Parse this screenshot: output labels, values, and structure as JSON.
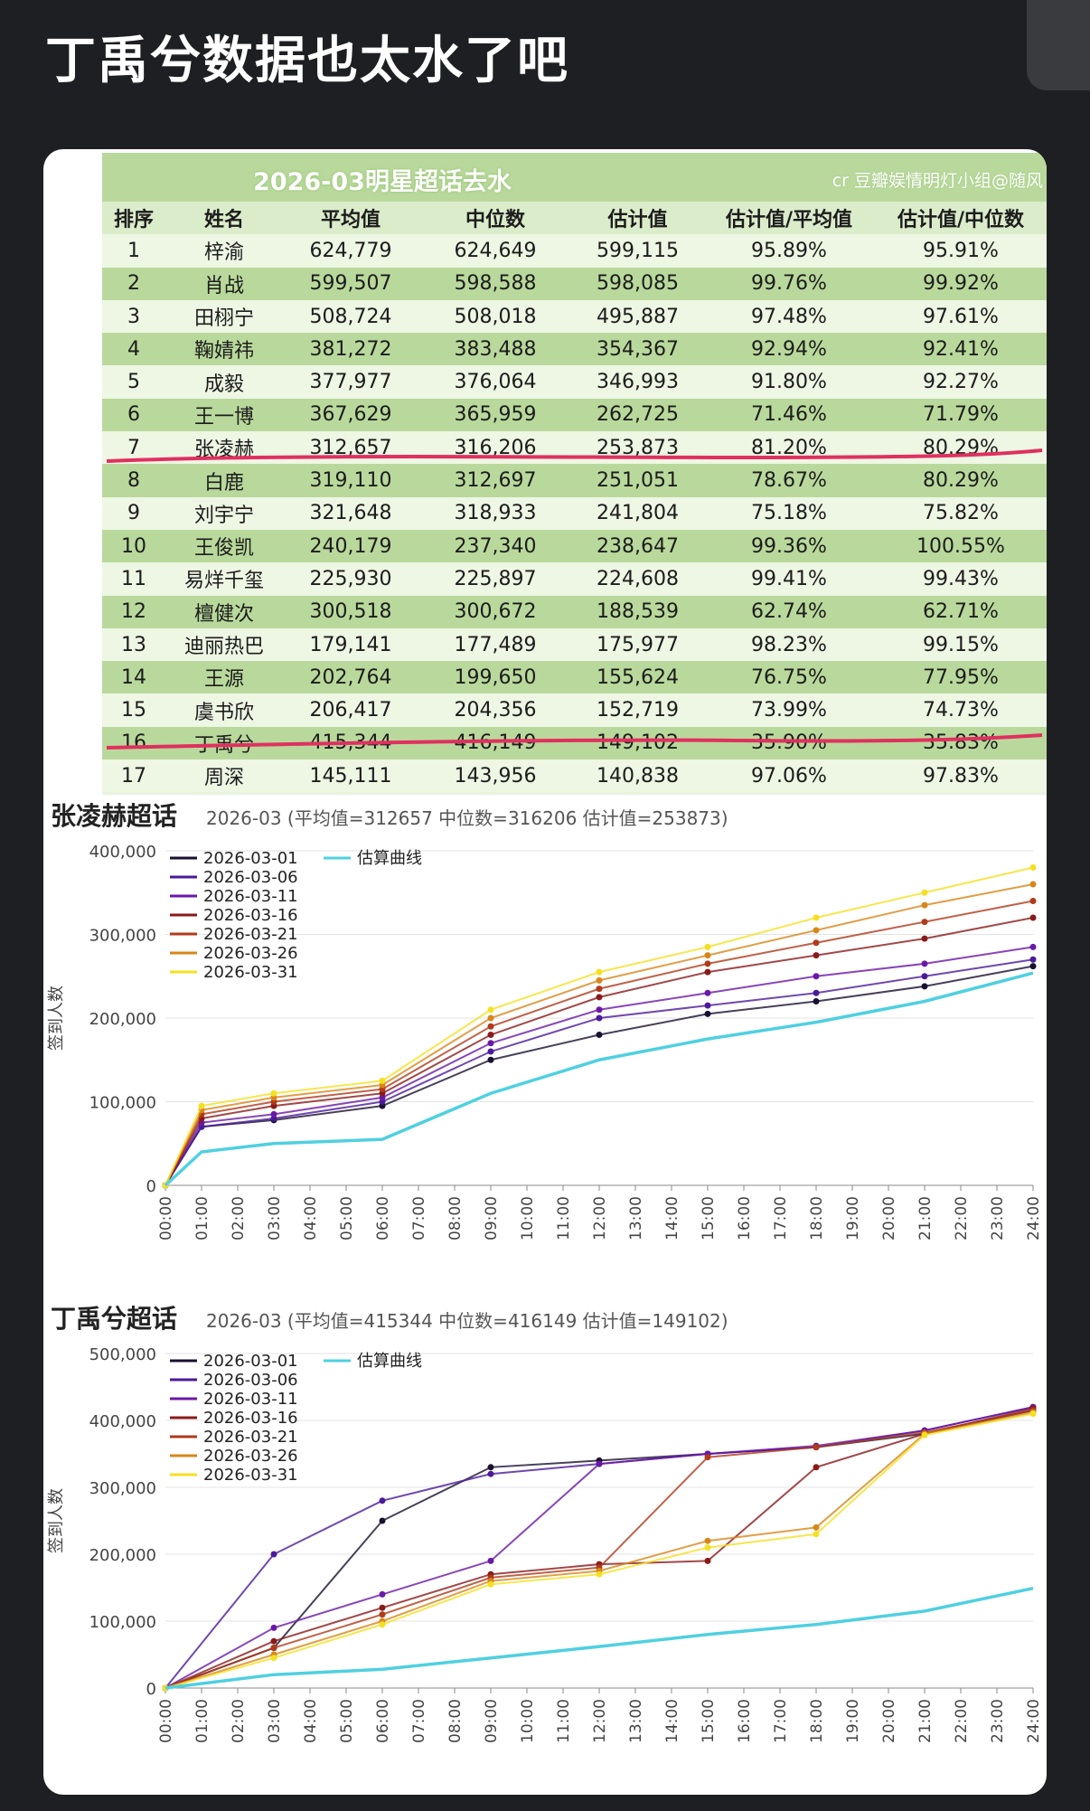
{
  "post": {
    "title": "丁禹兮数据也太水了吧"
  },
  "table": {
    "title": "2026-03明星超话去水",
    "credit": "cr 豆瓣娱情明灯小组@随风",
    "columns": [
      "排序",
      "姓名",
      "平均值",
      "中位数",
      "估计值",
      "估计值/平均值",
      "估计值/中位数"
    ],
    "rows": [
      [
        "1",
        "梓渝",
        "624,779",
        "624,649",
        "599,115",
        "95.89%",
        "95.91%"
      ],
      [
        "2",
        "肖战",
        "599,507",
        "598,588",
        "598,085",
        "99.76%",
        "99.92%"
      ],
      [
        "3",
        "田栩宁",
        "508,724",
        "508,018",
        "495,887",
        "97.48%",
        "97.61%"
      ],
      [
        "4",
        "鞠婧祎",
        "381,272",
        "383,488",
        "354,367",
        "92.94%",
        "92.41%"
      ],
      [
        "5",
        "成毅",
        "377,977",
        "376,064",
        "346,993",
        "91.80%",
        "92.27%"
      ],
      [
        "6",
        "王一博",
        "367,629",
        "365,959",
        "262,725",
        "71.46%",
        "71.79%"
      ],
      [
        "7",
        "张凌赫",
        "312,657",
        "316,206",
        "253,873",
        "81.20%",
        "80.29%"
      ],
      [
        "8",
        "白鹿",
        "319,110",
        "312,697",
        "251,051",
        "78.67%",
        "80.29%"
      ],
      [
        "9",
        "刘宇宁",
        "321,648",
        "318,933",
        "241,804",
        "75.18%",
        "75.82%"
      ],
      [
        "10",
        "王俊凯",
        "240,179",
        "237,340",
        "238,647",
        "99.36%",
        "100.55%"
      ],
      [
        "11",
        "易烊千玺",
        "225,930",
        "225,897",
        "224,608",
        "99.41%",
        "99.43%"
      ],
      [
        "12",
        "檀健次",
        "300,518",
        "300,672",
        "188,539",
        "62.74%",
        "62.71%"
      ],
      [
        "13",
        "迪丽热巴",
        "179,141",
        "177,489",
        "175,977",
        "98.23%",
        "99.15%"
      ],
      [
        "14",
        "王源",
        "202,764",
        "199,650",
        "155,624",
        "76.75%",
        "77.95%"
      ],
      [
        "15",
        "虞书欣",
        "206,417",
        "204,356",
        "152,719",
        "73.99%",
        "74.73%"
      ],
      [
        "16",
        "丁禹兮",
        "415,344",
        "416,149",
        "149,102",
        "35.90%",
        "35.83%"
      ],
      [
        "17",
        "周深",
        "145,111",
        "143,956",
        "140,838",
        "97.06%",
        "97.83%"
      ]
    ],
    "highlight_color": "#e0305f"
  },
  "chart_data": [
    {
      "type": "scatter",
      "title": "张凌赫超话",
      "subtitle": "2026-03 (平均值=312657 中位数=316206 估计值=253873)",
      "ylabel": "签到人数",
      "ylim": [
        0,
        400000
      ],
      "yticks": [
        "0",
        "100,000",
        "200,000",
        "300,000",
        "400,000"
      ],
      "xticks": [
        "00:00",
        "01:00",
        "02:00",
        "03:00",
        "04:00",
        "05:00",
        "06:00",
        "07:00",
        "08:00",
        "09:00",
        "10:00",
        "11:00",
        "12:00",
        "13:00",
        "14:00",
        "15:00",
        "16:00",
        "17:00",
        "18:00",
        "19:00",
        "20:00",
        "21:00",
        "22:00",
        "23:00",
        "24:00"
      ],
      "legend": [
        "2026-03-01",
        "2026-03-06",
        "2026-03-11",
        "2026-03-16",
        "2026-03-21",
        "2026-03-26",
        "2026-03-31"
      ],
      "legend_colors": [
        "#1a1030",
        "#4b1a9a",
        "#6a18a8",
        "#8a1a1a",
        "#b03a1a",
        "#d8861a",
        "#f5e020"
      ],
      "estimate_label": "估算曲线",
      "estimate_color": "#4fd0e0",
      "x": [
        0,
        1,
        3,
        6,
        9,
        12,
        15,
        18,
        21,
        24
      ],
      "estimate": [
        0,
        40000,
        50000,
        55000,
        110000,
        150000,
        175000,
        195000,
        220000,
        253873
      ],
      "series": [
        {
          "name": "2026-03-01",
          "values": [
            0,
            70000,
            78000,
            95000,
            150000,
            180000,
            205000,
            220000,
            238000,
            262000
          ]
        },
        {
          "name": "2026-03-06",
          "values": [
            0,
            70000,
            80000,
            100000,
            160000,
            200000,
            215000,
            230000,
            250000,
            270000
          ]
        },
        {
          "name": "2026-03-11",
          "values": [
            0,
            75000,
            85000,
            105000,
            170000,
            210000,
            230000,
            250000,
            265000,
            285000
          ]
        },
        {
          "name": "2026-03-16",
          "values": [
            0,
            80000,
            95000,
            110000,
            180000,
            225000,
            255000,
            275000,
            295000,
            320000
          ]
        },
        {
          "name": "2026-03-21",
          "values": [
            0,
            85000,
            100000,
            115000,
            190000,
            235000,
            265000,
            290000,
            315000,
            340000
          ]
        },
        {
          "name": "2026-03-26",
          "values": [
            0,
            90000,
            105000,
            120000,
            200000,
            245000,
            275000,
            305000,
            335000,
            360000
          ]
        },
        {
          "name": "2026-03-31",
          "values": [
            0,
            95000,
            110000,
            125000,
            210000,
            255000,
            285000,
            320000,
            350000,
            380000
          ]
        }
      ]
    },
    {
      "type": "scatter",
      "title": "丁禹兮超话",
      "subtitle": "2026-03 (平均值=415344 中位数=416149 估计值=149102)",
      "ylabel": "签到人数",
      "ylim": [
        0,
        500000
      ],
      "yticks": [
        "0",
        "100,000",
        "200,000",
        "300,000",
        "400,000",
        "500,000"
      ],
      "xticks": [
        "00:00",
        "01:00",
        "02:00",
        "03:00",
        "04:00",
        "05:00",
        "06:00",
        "07:00",
        "08:00",
        "09:00",
        "10:00",
        "11:00",
        "12:00",
        "13:00",
        "14:00",
        "15:00",
        "16:00",
        "17:00",
        "18:00",
        "19:00",
        "20:00",
        "21:00",
        "22:00",
        "23:00",
        "24:00"
      ],
      "legend": [
        "2026-03-01",
        "2026-03-06",
        "2026-03-11",
        "2026-03-16",
        "2026-03-21",
        "2026-03-26",
        "2026-03-31"
      ],
      "legend_colors": [
        "#1a1030",
        "#4b1a9a",
        "#6a18a8",
        "#8a1a1a",
        "#b03a1a",
        "#d8861a",
        "#f5e020"
      ],
      "estimate_label": "估算曲线",
      "estimate_color": "#4fd0e0",
      "x": [
        0,
        3,
        6,
        9,
        12,
        15,
        18,
        21,
        24
      ],
      "estimate": [
        0,
        20000,
        28000,
        45000,
        62000,
        80000,
        95000,
        115000,
        149102
      ],
      "series": [
        {
          "name": "2026-03-01",
          "values": [
            0,
            60000,
            250000,
            330000,
            340000,
            350000,
            360000,
            380000,
            415000
          ]
        },
        {
          "name": "2026-03-06",
          "values": [
            0,
            200000,
            280000,
            320000,
            335000,
            350000,
            360000,
            385000,
            420000
          ]
        },
        {
          "name": "2026-03-11",
          "values": [
            0,
            90000,
            140000,
            190000,
            335000,
            350000,
            362000,
            385000,
            420000
          ]
        },
        {
          "name": "2026-03-16",
          "values": [
            0,
            70000,
            120000,
            170000,
            185000,
            190000,
            330000,
            380000,
            418000
          ]
        },
        {
          "name": "2026-03-21",
          "values": [
            0,
            60000,
            110000,
            165000,
            180000,
            345000,
            360000,
            382000,
            415000
          ]
        },
        {
          "name": "2026-03-26",
          "values": [
            0,
            50000,
            100000,
            160000,
            175000,
            220000,
            240000,
            380000,
            412000
          ]
        },
        {
          "name": "2026-03-31",
          "values": [
            0,
            45000,
            95000,
            155000,
            170000,
            210000,
            230000,
            378000,
            410000
          ]
        }
      ]
    }
  ]
}
